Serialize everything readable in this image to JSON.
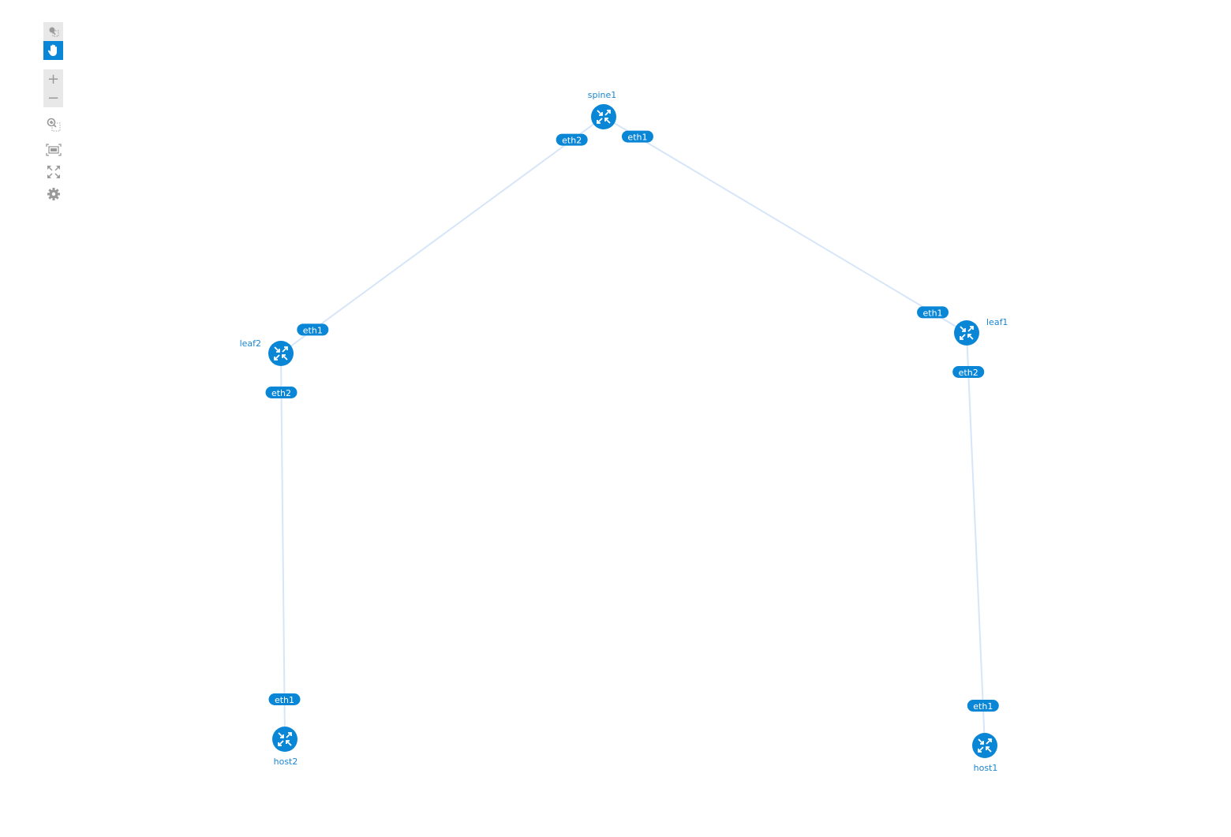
{
  "toolbar": {
    "items": [
      {
        "icon": "select-icon",
        "active": false
      },
      {
        "icon": "pan-hand-icon",
        "active": true
      },
      {
        "icon": "zoom-in-icon",
        "label": "+"
      },
      {
        "icon": "zoom-out-icon",
        "label": "−"
      },
      {
        "icon": "zoom-selection-icon"
      },
      {
        "icon": "fit-to-screen-icon"
      },
      {
        "icon": "fullscreen-icon"
      },
      {
        "icon": "settings-gear-icon"
      }
    ]
  },
  "colors": {
    "node": "#0a86d6",
    "link": "#d6e6f8",
    "label": "#1a86d0"
  },
  "nodes": [
    {
      "id": "spine1",
      "label": "spine1",
      "icon": "router-icon"
    },
    {
      "id": "leaf1",
      "label": "leaf1",
      "icon": "router-icon"
    },
    {
      "id": "leaf2",
      "label": "leaf2",
      "icon": "router-icon"
    },
    {
      "id": "host1",
      "label": "host1",
      "icon": "router-icon"
    },
    {
      "id": "host2",
      "label": "host2",
      "icon": "router-icon"
    }
  ],
  "links": [
    {
      "source": "spine1",
      "source_port": "eth2",
      "target": "leaf2",
      "target_port": "eth1"
    },
    {
      "source": "spine1",
      "source_port": "eth1",
      "target": "leaf1",
      "target_port": "eth1"
    },
    {
      "source": "leaf2",
      "source_port": "eth2",
      "target": "host2",
      "target_port": "eth1"
    },
    {
      "source": "leaf1",
      "source_port": "eth2",
      "target": "host1",
      "target_port": "eth1"
    }
  ]
}
